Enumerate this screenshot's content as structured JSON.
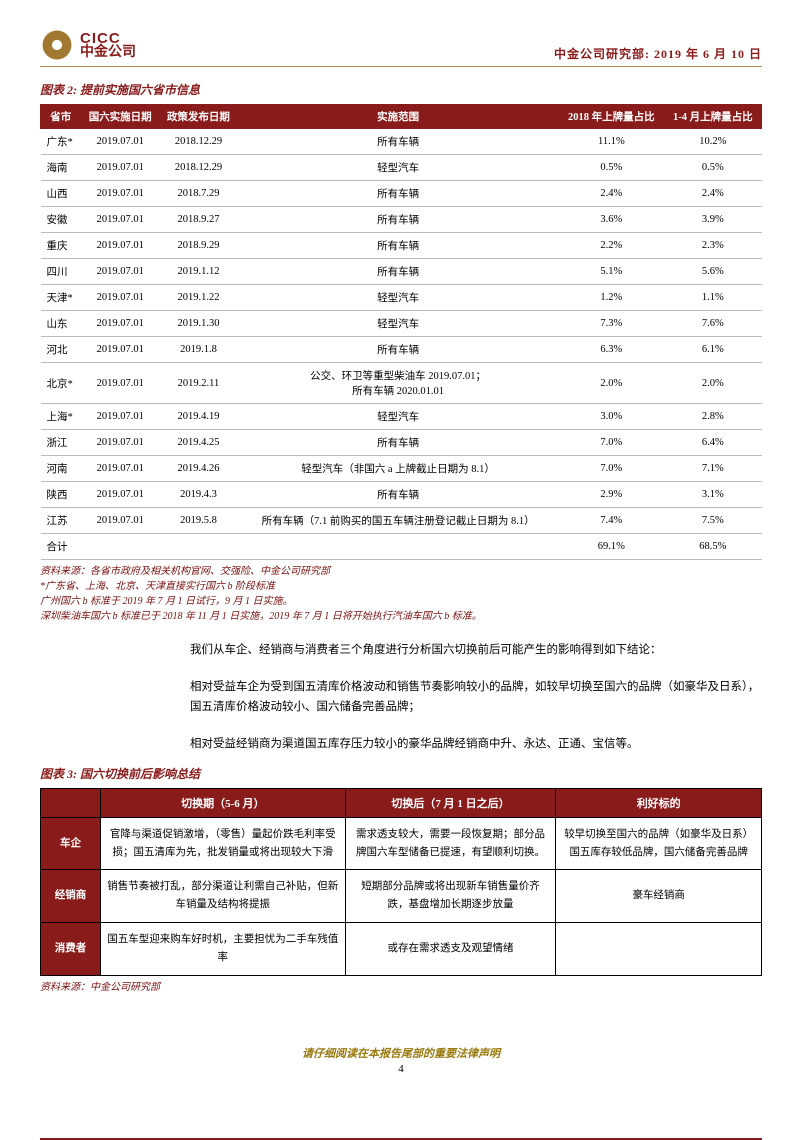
{
  "header": {
    "logo_en": "CICC",
    "logo_cn": "中金公司",
    "right": "中金公司研究部: 2019 年 6 月 10 日"
  },
  "fig2": {
    "title": "图表 2: 提前实施国六省市信息",
    "columns": [
      "省市",
      "国六实施日期",
      "政策发布日期",
      "实施范围",
      "2018 年上牌量占比",
      "1-4 月上牌量占比"
    ],
    "rows": [
      [
        "广东*",
        "2019.07.01",
        "2018.12.29",
        "所有车辆",
        "11.1%",
        "10.2%"
      ],
      [
        "海南",
        "2019.07.01",
        "2018.12.29",
        "轻型汽车",
        "0.5%",
        "0.5%"
      ],
      [
        "山西",
        "2019.07.01",
        "2018.7.29",
        "所有车辆",
        "2.4%",
        "2.4%"
      ],
      [
        "安徽",
        "2019.07.01",
        "2018.9.27",
        "所有车辆",
        "3.6%",
        "3.9%"
      ],
      [
        "重庆",
        "2019.07.01",
        "2018.9.29",
        "所有车辆",
        "2.2%",
        "2.3%"
      ],
      [
        "四川",
        "2019.07.01",
        "2019.1.12",
        "所有车辆",
        "5.1%",
        "5.6%"
      ],
      [
        "天津*",
        "2019.07.01",
        "2019.1.22",
        "轻型汽车",
        "1.2%",
        "1.1%"
      ],
      [
        "山东",
        "2019.07.01",
        "2019.1.30",
        "轻型汽车",
        "7.3%",
        "7.6%"
      ],
      [
        "河北",
        "2019.07.01",
        "2019.1.8",
        "所有车辆",
        "6.3%",
        "6.1%"
      ],
      [
        "北京*",
        "2019.07.01",
        "2019.2.11",
        "公交、环卫等重型柴油车 2019.07.01；\n所有车辆 2020.01.01",
        "2.0%",
        "2.0%"
      ],
      [
        "上海*",
        "2019.07.01",
        "2019.4.19",
        "轻型汽车",
        "3.0%",
        "2.8%"
      ],
      [
        "浙江",
        "2019.07.01",
        "2019.4.25",
        "所有车辆",
        "7.0%",
        "6.4%"
      ],
      [
        "河南",
        "2019.07.01",
        "2019.4.26",
        "轻型汽车（非国六 a 上牌截止日期为 8.1）",
        "7.0%",
        "7.1%"
      ],
      [
        "陕西",
        "2019.07.01",
        "2019.4.3",
        "所有车辆",
        "2.9%",
        "3.1%"
      ],
      [
        "江苏",
        "2019.07.01",
        "2019.5.8",
        "所有车辆（7.1 前购买的国五车辆注册登记截止日期为 8.1）",
        "7.4%",
        "7.5%"
      ],
      [
        "合计",
        "",
        "",
        "",
        "69.1%",
        "68.5%"
      ]
    ],
    "source": "资料来源：各省市政府及相关机构官网、交强险、中金公司研究部",
    "note1": "*广东省、上海、北京、天津直接实行国六 b 阶段标准",
    "note2": "广州国六 b 标准于 2019 年 7 月 1 日试行，9 月 1 日实施。",
    "note3": "深圳柴油车国六 b 标准已于 2018 年 11 月 1 日实施，2019 年 7 月 1 日将开始执行汽油车国六 b 标准。"
  },
  "body": {
    "p1": "我们从车企、经销商与消费者三个角度进行分析国六切换前后可能产生的影响得到如下结论：",
    "p2": "相对受益车企为受到国五清库价格波动和销售节奏影响较小的品牌，如较早切换至国六的品牌（如豪华及日系），国五清库价格波动较小、国六储备完善品牌；",
    "p3": "相对受益经销商为渠道国五库存压力较小的豪华品牌经销商中升、永达、正通、宝信等。"
  },
  "fig3": {
    "title": "图表 3: 国六切换前后影响总结",
    "columns": [
      "",
      "切换期（5-6 月）",
      "切换后（7 月 1 日之后）",
      "利好标的"
    ],
    "rows": [
      [
        "车企",
        "官降与渠道促销激增，（零售）量起价跌毛利率受损；国五清库为先，批发销量或将出现较大下滑",
        "需求透支较大，需要一段恢复期；部分品牌国六车型储备已提速，有望顺利切换。",
        "较早切换至国六的品牌（如豪华及日系）国五库存较低品牌，国六储备完善品牌"
      ],
      [
        "经销商",
        "销售节奏被打乱，部分渠道让利需自己补贴，但新车销量及结构将提振",
        "短期部分品牌或将出现新车销售量价齐跌，基盘增加长期逐步放量",
        "豪车经销商"
      ],
      [
        "消费者",
        "国五车型迎来购车好时机，主要担忧为二手车残值率",
        "或存在需求透支及观望情绪",
        ""
      ]
    ],
    "source": "资料来源：中金公司研究部"
  },
  "footer": {
    "line1": "请仔细阅读在本报告尾部的重要法律声明",
    "page": "4"
  }
}
